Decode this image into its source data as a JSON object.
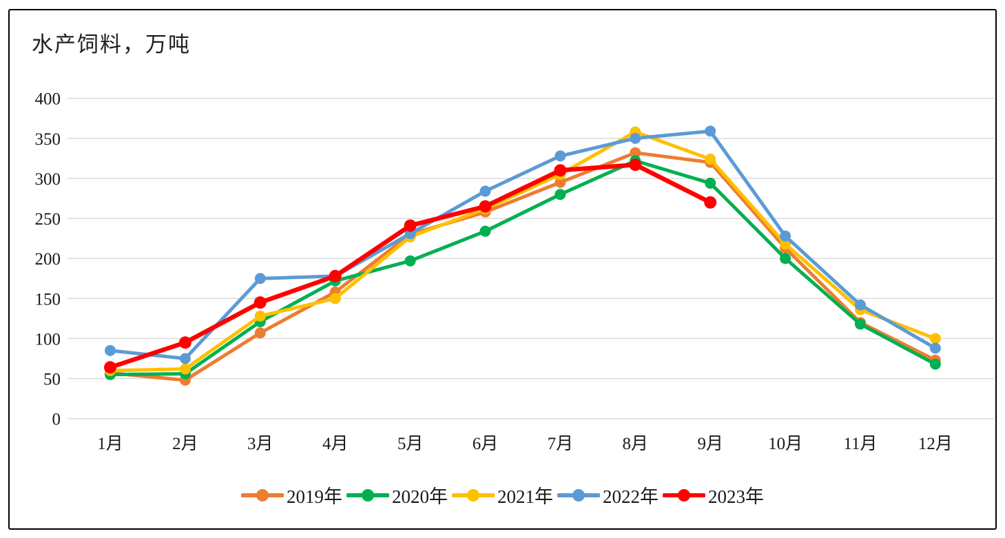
{
  "chart_data": {
    "type": "line",
    "title": "水产饲料，万吨",
    "categories": [
      "1月",
      "2月",
      "3月",
      "4月",
      "5月",
      "6月",
      "7月",
      "8月",
      "9月",
      "10月",
      "11月",
      "12月"
    ],
    "series": [
      {
        "name": "2019年",
        "color": "#ED7D31",
        "thick": false,
        "values": [
          57,
          48,
          107,
          158,
          230,
          258,
          295,
          332,
          320,
          213,
          120,
          73
        ]
      },
      {
        "name": "2020年",
        "color": "#00B050",
        "thick": false,
        "values": [
          55,
          56,
          121,
          172,
          197,
          234,
          280,
          322,
          294,
          200,
          118,
          68
        ]
      },
      {
        "name": "2021年",
        "color": "#FFC000",
        "thick": false,
        "values": [
          60,
          62,
          128,
          150,
          227,
          262,
          305,
          358,
          324,
          218,
          136,
          100
        ]
      },
      {
        "name": "2022年",
        "color": "#5B9BD5",
        "thick": false,
        "values": [
          85,
          75,
          175,
          178,
          231,
          284,
          328,
          350,
          359,
          228,
          142,
          88
        ]
      },
      {
        "name": "2023年",
        "color": "#FF0000",
        "thick": true,
        "values": [
          64,
          95,
          145,
          178,
          241,
          265,
          310,
          317,
          270,
          null,
          null,
          null
        ]
      }
    ],
    "xlabel": "",
    "ylabel": "",
    "ylim": [
      0,
      400
    ],
    "ytick_step": 50,
    "grid": "horizontal",
    "legend_position": "bottom"
  },
  "colors": {
    "grid": "#D9D9D9",
    "axis_text": "#1a1a1a",
    "frame_border": "#000000",
    "background": "#FFFFFF"
  }
}
